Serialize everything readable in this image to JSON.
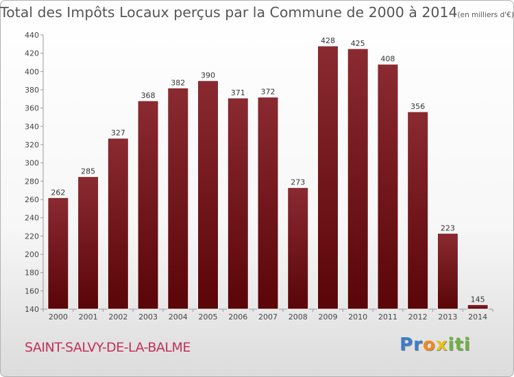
{
  "chart_data": {
    "type": "bar",
    "title": "Total des Impôts Locaux perçus par la Commune de 2000 à 2014",
    "unit": "(en milliers d'€)",
    "categories": [
      "2000",
      "2001",
      "2002",
      "2003",
      "2004",
      "2005",
      "2006",
      "2007",
      "2008",
      "2009",
      "2010",
      "2011",
      "2012",
      "2013",
      "2014"
    ],
    "values": [
      262,
      285,
      327,
      368,
      382,
      390,
      371,
      372,
      273,
      428,
      425,
      408,
      356,
      223,
      145
    ],
    "ylim": [
      140,
      440
    ],
    "yticks": [
      140,
      160,
      180,
      200,
      220,
      240,
      260,
      280,
      300,
      320,
      340,
      360,
      380,
      400,
      420,
      440
    ],
    "xlabel": "",
    "ylabel": "",
    "grid": false,
    "bar_color": "#7a1a1f"
  },
  "footer": {
    "commune": "SAINT-SALVY-DE-LA-BALME",
    "logo_letters": [
      "P",
      "r",
      "o",
      "x",
      "i",
      "t",
      "i"
    ],
    "logo_colors": [
      "#3a7ecb",
      "#3a7ecb",
      "#f08a1c",
      "#e8c21a",
      "#6cb33f",
      "#6cb33f",
      "#6cb33f"
    ]
  }
}
